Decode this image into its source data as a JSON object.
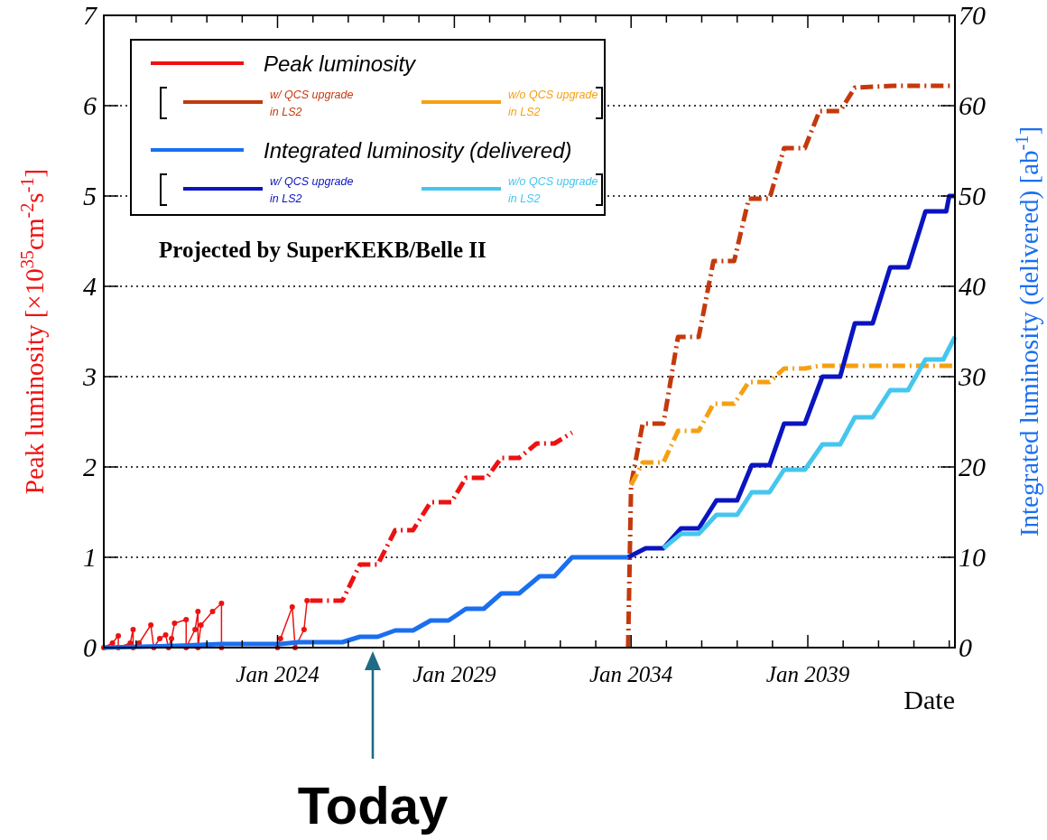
{
  "chart_data": {
    "type": "line",
    "xlabel": "Date",
    "ylabel": "Peak luminosity [×10$^{35}$cm$^{-2}$s$^{-1}$]",
    "y2label": "Integrated luminosity (delivered) [ab$^{-1}$]",
    "xlim": [
      "2019-02",
      "2043-03"
    ],
    "xticks": [
      {
        "value": "2020-01",
        "label": null
      },
      {
        "value": "2021-01",
        "label": null
      },
      {
        "value": "2022-01",
        "label": null
      },
      {
        "value": "2023-01",
        "label": null
      },
      {
        "value": "2024-01",
        "label": "Jan 2024"
      },
      {
        "value": "2025-01",
        "label": null
      },
      {
        "value": "2026-01",
        "label": null
      },
      {
        "value": "2027-01",
        "label": null
      },
      {
        "value": "2028-01",
        "label": null
      },
      {
        "value": "2029-01",
        "label": "Jan 2029"
      },
      {
        "value": "2030-01",
        "label": null
      },
      {
        "value": "2031-01",
        "label": null
      },
      {
        "value": "2032-01",
        "label": null
      },
      {
        "value": "2033-01",
        "label": null
      },
      {
        "value": "2034-01",
        "label": "Jan 2034"
      },
      {
        "value": "2035-01",
        "label": null
      },
      {
        "value": "2036-01",
        "label": null
      },
      {
        "value": "2037-01",
        "label": null
      },
      {
        "value": "2038-01",
        "label": null
      },
      {
        "value": "2039-01",
        "label": "Jan 2039"
      },
      {
        "value": "2040-01",
        "label": null
      },
      {
        "value": "2041-01",
        "label": null
      },
      {
        "value": "2042-01",
        "label": null
      },
      {
        "value": "2043-01",
        "label": null
      }
    ],
    "ylim": [
      0,
      7
    ],
    "yticks": [
      0,
      1,
      2,
      3,
      4,
      5,
      6,
      7
    ],
    "y2lim": [
      0,
      70
    ],
    "y2ticks": [
      0,
      10,
      20,
      30,
      40,
      50,
      60,
      70
    ],
    "grid": "y",
    "legend": "top left",
    "annotations": [
      "Projected by SuperKEKB/Belle II",
      "Today"
    ],
    "series": [
      {
        "name": "Peak luminosity",
        "color": "#ee1111",
        "marker": "circle",
        "x": [
          "2019-02",
          "2019-05",
          "2019-07",
          "2019-07",
          "2019-11",
          "2019-12",
          "2019-12",
          "2020-02",
          "2020-06",
          "2020-07",
          "2020-09",
          "2020-11",
          "2020-12",
          "2021-01",
          "2021-02",
          "2021-06",
          "2021-06",
          "2021-09",
          "2021-10",
          "2021-10",
          "2021-11",
          "2022-03",
          "2022-06",
          "2022-06",
          "2024-01",
          "2024-02",
          "2024-06",
          "2024-07",
          "2024-10",
          "2024-11"
        ],
        "values": [
          0,
          0.05,
          0.13,
          0,
          0.05,
          0.2,
          0,
          0.05,
          0.25,
          0,
          0.1,
          0.14,
          0,
          0.1,
          0.27,
          0.31,
          0,
          0.2,
          0.4,
          0,
          0.25,
          0.4,
          0.49,
          0,
          0,
          0.1,
          0.45,
          0,
          0.2,
          0.52
        ]
      },
      {
        "color": "#ee1111",
        "line_style": "dashed",
        "x": [
          "2024-12",
          "2025-11",
          "2026-05",
          "2026-11",
          "2027-05",
          "2027-11",
          "2028-05",
          "2028-12",
          "2029-05",
          "2029-12",
          "2030-05",
          "2030-11",
          "2031-05",
          "2031-11",
          "2032-05"
        ],
        "values": [
          0.52,
          0.52,
          0.92,
          0.92,
          1.3,
          1.3,
          1.61,
          1.61,
          1.88,
          1.88,
          2.1,
          2.1,
          2.26,
          2.26,
          2.38
        ]
      },
      {
        "name": "w/ QCS upgrade in LS2",
        "color": "#c4390c",
        "line_style": "dashed",
        "x": [
          "2033-12",
          "2034-01",
          "2034-05",
          "2034-12",
          "2035-05",
          "2035-12",
          "2036-05",
          "2036-12",
          "2037-05",
          "2037-12",
          "2038-05",
          "2038-12",
          "2039-05",
          "2039-12",
          "2040-05",
          "2041-06",
          "2043-03"
        ],
        "values": [
          0,
          1.8,
          2.48,
          2.48,
          3.44,
          3.44,
          4.28,
          4.28,
          4.97,
          4.97,
          5.53,
          5.53,
          5.94,
          5.94,
          6.2,
          6.22,
          6.22
        ]
      },
      {
        "name": "w/o QCS upgrade in LS2",
        "color": "#f5a012",
        "line_style": "dashed",
        "x": [
          "2034-01",
          "2034-05",
          "2034-12",
          "2035-05",
          "2035-12",
          "2036-05",
          "2036-12",
          "2037-05",
          "2037-12",
          "2038-05",
          "2038-12",
          "2039-05",
          "2043-03"
        ],
        "values": [
          1.8,
          2.05,
          2.05,
          2.4,
          2.4,
          2.7,
          2.7,
          2.94,
          2.94,
          3.09,
          3.09,
          3.12,
          3.12
        ]
      },
      {
        "name": "Integrated luminosity (delivered)",
        "color": "#1a6ff0",
        "axis": "y2",
        "x": [
          "2019-02",
          "2021-03",
          "2022-06",
          "2024-02",
          "2024-08",
          "2025-11",
          "2026-05",
          "2026-11",
          "2027-05",
          "2027-11",
          "2028-05",
          "2028-11",
          "2029-05",
          "2029-11",
          "2030-05",
          "2030-11",
          "2031-06",
          "2031-11",
          "2032-05",
          "2033-12"
        ],
        "values": [
          0,
          0.2,
          0.4,
          0.4,
          0.6,
          0.6,
          1.2,
          1.2,
          1.9,
          1.9,
          3.0,
          3.0,
          4.3,
          4.3,
          6.0,
          6.0,
          7.9,
          7.9,
          10,
          10
        ]
      },
      {
        "name": "w/ QCS upgrade in LS2",
        "color": "#0a14c0",
        "axis": "y2",
        "x": [
          "2033-12",
          "2034-06",
          "2034-12",
          "2035-06",
          "2035-12",
          "2036-06",
          "2037-01",
          "2037-06",
          "2037-12",
          "2038-05",
          "2038-12",
          "2039-06",
          "2039-12",
          "2040-05",
          "2040-11",
          "2041-05",
          "2041-11",
          "2042-05",
          "2042-12",
          "2043-01",
          "2043-03"
        ],
        "values": [
          10,
          11,
          11,
          13.2,
          13.2,
          16.3,
          16.3,
          20.2,
          20.2,
          24.8,
          24.8,
          30,
          30,
          35.9,
          35.9,
          42.1,
          42.1,
          48.3,
          48.3,
          50,
          50
        ]
      },
      {
        "name": "w/o QCS upgrade in LS2",
        "color": "#45c6ee",
        "axis": "y2",
        "x": [
          "2034-12",
          "2035-06",
          "2035-12",
          "2036-06",
          "2037-01",
          "2037-06",
          "2037-12",
          "2038-05",
          "2038-12",
          "2039-06",
          "2039-12",
          "2040-05",
          "2040-11",
          "2041-05",
          "2041-11",
          "2042-05",
          "2042-11",
          "2043-03"
        ],
        "values": [
          11,
          12.6,
          12.6,
          14.7,
          14.7,
          17.2,
          17.2,
          19.7,
          19.7,
          22.5,
          22.5,
          25.5,
          25.5,
          28.5,
          28.5,
          31.9,
          31.9,
          34.4
        ]
      }
    ]
  }
}
